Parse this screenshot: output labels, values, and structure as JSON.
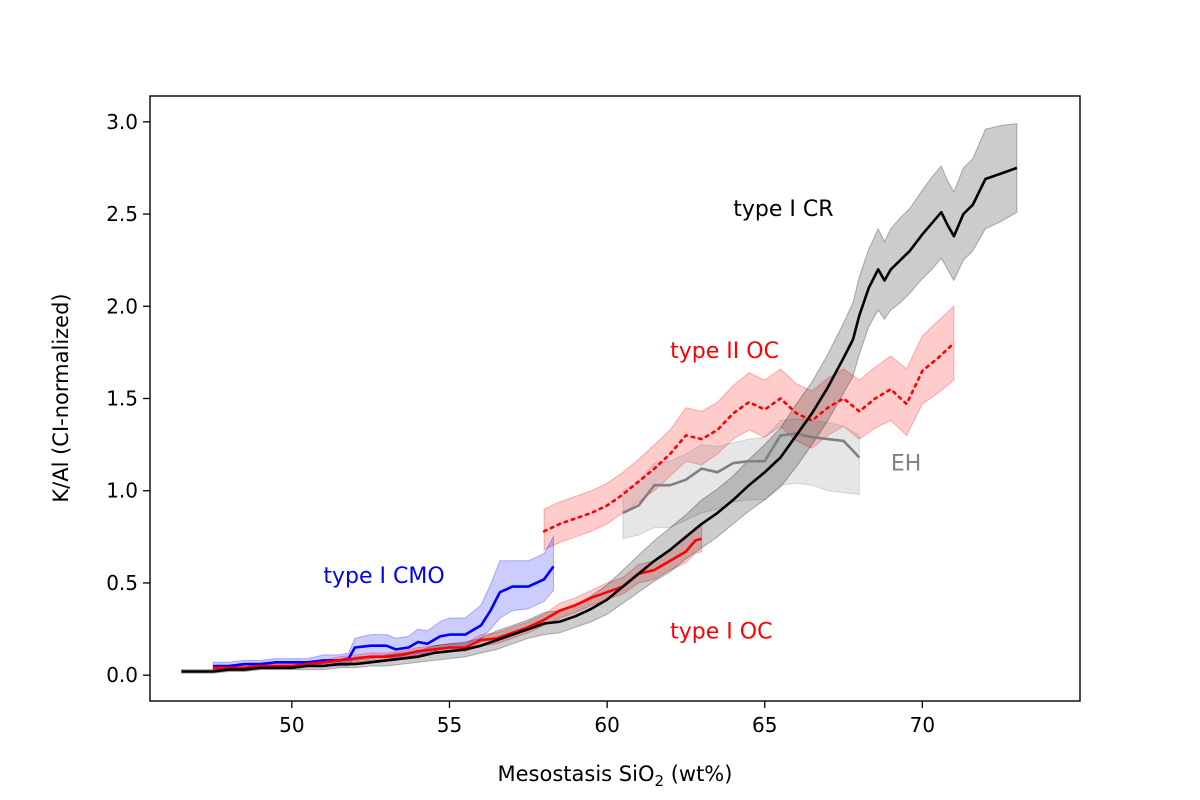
{
  "chart_data": {
    "type": "line",
    "title": "",
    "xlabel": {
      "prefix": "Mesostasis SiO",
      "sub": "2",
      "suffix": " (wt%)"
    },
    "ylabel": "K/Al (CI-normalized)",
    "xlim": [
      45.5,
      75.0
    ],
    "ylim": [
      -0.14,
      3.14
    ],
    "xticks": [
      50,
      55,
      60,
      65,
      70
    ],
    "yticks": [
      0.0,
      0.5,
      1.0,
      1.5,
      2.0,
      2.5,
      3.0
    ],
    "xtick_labels": [
      "50",
      "55",
      "60",
      "65",
      "70"
    ],
    "ytick_labels": [
      "0.0",
      "0.5",
      "1.0",
      "1.5",
      "2.0",
      "2.5",
      "3.0"
    ],
    "grid": false,
    "series": [
      {
        "name": "type II OC",
        "color": "#ff0000",
        "linestyle": "dotted",
        "band_opacity": 0.2,
        "label_pos": [
          62.0,
          1.72
        ],
        "x": [
          58,
          58.5,
          59,
          59.5,
          60,
          60.5,
          61,
          61.5,
          62,
          62.5,
          63,
          63.5,
          64,
          64.5,
          65,
          65.5,
          66,
          66.5,
          67,
          67.5,
          68,
          68.5,
          69,
          69.5,
          70,
          70.5,
          71
        ],
        "y": [
          0.78,
          0.82,
          0.85,
          0.88,
          0.92,
          0.98,
          1.05,
          1.12,
          1.2,
          1.3,
          1.28,
          1.33,
          1.42,
          1.48,
          1.44,
          1.5,
          1.42,
          1.38,
          1.45,
          1.5,
          1.43,
          1.5,
          1.55,
          1.47,
          1.65,
          1.72,
          1.8
        ],
        "lower": [
          0.68,
          0.72,
          0.75,
          0.78,
          0.82,
          0.88,
          0.94,
          1.0,
          1.08,
          1.16,
          1.14,
          1.2,
          1.28,
          1.33,
          1.29,
          1.35,
          1.27,
          1.23,
          1.3,
          1.35,
          1.28,
          1.34,
          1.38,
          1.3,
          1.47,
          1.53,
          1.6
        ],
        "upper": [
          0.9,
          0.94,
          0.97,
          1.0,
          1.04,
          1.1,
          1.17,
          1.25,
          1.33,
          1.45,
          1.43,
          1.48,
          1.57,
          1.64,
          1.6,
          1.66,
          1.58,
          1.54,
          1.61,
          1.66,
          1.6,
          1.67,
          1.73,
          1.66,
          1.84,
          1.92,
          2.0
        ]
      },
      {
        "name": "EH",
        "color": "#808080",
        "linestyle": "solid",
        "band_opacity": 0.2,
        "label_pos": [
          69.0,
          1.11
        ],
        "x": [
          60.5,
          61,
          61.5,
          62,
          62.5,
          63,
          63.5,
          64,
          64.5,
          65,
          65.5,
          66,
          66.5,
          67,
          67.5,
          68
        ],
        "y": [
          0.88,
          0.92,
          1.03,
          1.03,
          1.06,
          1.12,
          1.1,
          1.15,
          1.16,
          1.16,
          1.3,
          1.31,
          1.29,
          1.28,
          1.27,
          1.18
        ],
        "lower": [
          0.74,
          0.76,
          0.8,
          0.8,
          0.84,
          0.88,
          0.9,
          0.94,
          0.95,
          0.95,
          1.03,
          1.04,
          1.03,
          1.0,
          0.99,
          0.98
        ],
        "upper": [
          1.0,
          1.05,
          1.15,
          1.16,
          1.2,
          1.25,
          1.24,
          1.26,
          1.28,
          1.29,
          1.38,
          1.39,
          1.38,
          1.37,
          1.35,
          1.3
        ]
      },
      {
        "name": "type I CMO",
        "color": "#0000ff",
        "linestyle": "solid",
        "band_opacity": 0.2,
        "label_pos": [
          51.0,
          0.5
        ],
        "x": [
          47.5,
          48,
          48.5,
          49,
          49.5,
          50,
          50.5,
          51,
          51.5,
          51.8,
          52,
          52.5,
          53,
          53.3,
          53.7,
          54,
          54.3,
          54.7,
          55,
          55.5,
          56,
          56.3,
          56.6,
          57,
          57.5,
          58,
          58.3
        ],
        "y": [
          0.05,
          0.05,
          0.06,
          0.06,
          0.07,
          0.07,
          0.07,
          0.08,
          0.08,
          0.09,
          0.15,
          0.16,
          0.16,
          0.14,
          0.15,
          0.18,
          0.17,
          0.21,
          0.22,
          0.22,
          0.27,
          0.35,
          0.45,
          0.48,
          0.48,
          0.52,
          0.59
        ],
        "lower": [
          0.03,
          0.03,
          0.04,
          0.04,
          0.05,
          0.05,
          0.05,
          0.05,
          0.05,
          0.05,
          0.1,
          0.1,
          0.1,
          0.09,
          0.09,
          0.12,
          0.11,
          0.14,
          0.15,
          0.15,
          0.2,
          0.25,
          0.31,
          0.35,
          0.36,
          0.4,
          0.46
        ],
        "upper": [
          0.07,
          0.07,
          0.08,
          0.08,
          0.09,
          0.09,
          0.09,
          0.11,
          0.11,
          0.12,
          0.2,
          0.22,
          0.22,
          0.2,
          0.21,
          0.25,
          0.24,
          0.29,
          0.31,
          0.31,
          0.38,
          0.49,
          0.62,
          0.62,
          0.62,
          0.66,
          0.75
        ]
      },
      {
        "name": "type I OC",
        "color": "#ff0000",
        "linestyle": "solid",
        "band_opacity": 0.2,
        "label_pos": [
          62.0,
          0.2
        ],
        "x": [
          47.5,
          48,
          48.5,
          49,
          49.5,
          50,
          50.5,
          51,
          51.5,
          52,
          52.5,
          53,
          53.5,
          54,
          54.5,
          55,
          55.5,
          56,
          56.5,
          57,
          57.5,
          58,
          58.5,
          59,
          59.5,
          60,
          60.5,
          61,
          61.5,
          62,
          62.5,
          62.8,
          63
        ],
        "y": [
          0.04,
          0.04,
          0.04,
          0.05,
          0.05,
          0.05,
          0.06,
          0.07,
          0.08,
          0.09,
          0.1,
          0.1,
          0.11,
          0.13,
          0.14,
          0.15,
          0.15,
          0.19,
          0.2,
          0.23,
          0.26,
          0.3,
          0.35,
          0.38,
          0.42,
          0.45,
          0.48,
          0.55,
          0.57,
          0.62,
          0.67,
          0.73,
          0.74
        ],
        "lower": [
          0.03,
          0.03,
          0.03,
          0.04,
          0.04,
          0.04,
          0.05,
          0.06,
          0.06,
          0.07,
          0.08,
          0.08,
          0.09,
          0.11,
          0.12,
          0.13,
          0.13,
          0.16,
          0.17,
          0.2,
          0.23,
          0.27,
          0.31,
          0.34,
          0.38,
          0.41,
          0.44,
          0.5,
          0.52,
          0.57,
          0.61,
          0.66,
          0.67
        ],
        "upper": [
          0.05,
          0.05,
          0.05,
          0.06,
          0.06,
          0.06,
          0.07,
          0.08,
          0.1,
          0.11,
          0.12,
          0.12,
          0.13,
          0.15,
          0.16,
          0.17,
          0.17,
          0.22,
          0.23,
          0.26,
          0.29,
          0.33,
          0.39,
          0.42,
          0.46,
          0.5,
          0.53,
          0.6,
          0.62,
          0.68,
          0.74,
          0.8,
          0.82
        ]
      },
      {
        "name": "type I CR",
        "color": "#000000",
        "linestyle": "solid",
        "band_opacity": 0.2,
        "label_pos": [
          64.0,
          2.49
        ],
        "x": [
          46.5,
          47,
          47.5,
          48,
          48.5,
          49,
          49.5,
          50,
          50.5,
          51,
          51.5,
          52,
          52.5,
          53,
          53.5,
          54,
          54.5,
          55,
          55.5,
          56,
          56.5,
          57,
          57.5,
          58,
          58.5,
          59,
          59.5,
          60,
          60.5,
          61,
          61.5,
          62,
          62.5,
          63,
          63.5,
          64,
          64.5,
          65,
          65.5,
          66,
          66.5,
          67,
          67.5,
          67.8,
          68,
          68.3,
          68.6,
          68.8,
          69,
          69.3,
          69.6,
          70,
          70.3,
          70.6,
          70.8,
          71,
          71.3,
          71.6,
          72,
          72.5,
          73
        ],
        "y": [
          0.02,
          0.02,
          0.02,
          0.03,
          0.03,
          0.04,
          0.04,
          0.04,
          0.05,
          0.05,
          0.06,
          0.06,
          0.07,
          0.08,
          0.09,
          0.1,
          0.12,
          0.13,
          0.14,
          0.16,
          0.19,
          0.22,
          0.25,
          0.28,
          0.29,
          0.32,
          0.36,
          0.41,
          0.48,
          0.55,
          0.62,
          0.68,
          0.75,
          0.82,
          0.88,
          0.95,
          1.03,
          1.1,
          1.18,
          1.3,
          1.42,
          1.56,
          1.72,
          1.82,
          1.95,
          2.1,
          2.2,
          2.14,
          2.2,
          2.25,
          2.3,
          2.39,
          2.45,
          2.51,
          2.44,
          2.38,
          2.5,
          2.55,
          2.69,
          2.72,
          2.75
        ],
        "lower": [
          0.01,
          0.01,
          0.01,
          0.02,
          0.02,
          0.03,
          0.03,
          0.03,
          0.03,
          0.03,
          0.04,
          0.04,
          0.05,
          0.05,
          0.06,
          0.07,
          0.08,
          0.09,
          0.1,
          0.12,
          0.14,
          0.17,
          0.2,
          0.22,
          0.23,
          0.26,
          0.29,
          0.33,
          0.39,
          0.45,
          0.51,
          0.56,
          0.63,
          0.69,
          0.75,
          0.82,
          0.89,
          0.95,
          1.02,
          1.13,
          1.25,
          1.38,
          1.53,
          1.62,
          1.74,
          1.89,
          1.98,
          1.93,
          1.98,
          2.02,
          2.07,
          2.15,
          2.2,
          2.26,
          2.2,
          2.14,
          2.25,
          2.3,
          2.42,
          2.46,
          2.51
        ],
        "upper": [
          0.03,
          0.03,
          0.03,
          0.04,
          0.04,
          0.05,
          0.05,
          0.05,
          0.07,
          0.07,
          0.08,
          0.08,
          0.09,
          0.11,
          0.12,
          0.13,
          0.16,
          0.17,
          0.18,
          0.2,
          0.24,
          0.27,
          0.3,
          0.34,
          0.35,
          0.38,
          0.43,
          0.49,
          0.57,
          0.65,
          0.73,
          0.8,
          0.87,
          0.95,
          1.01,
          1.08,
          1.17,
          1.25,
          1.34,
          1.47,
          1.59,
          1.74,
          1.91,
          2.02,
          2.16,
          2.31,
          2.42,
          2.35,
          2.42,
          2.48,
          2.53,
          2.63,
          2.7,
          2.76,
          2.68,
          2.62,
          2.75,
          2.8,
          2.96,
          2.98,
          2.99
        ]
      }
    ]
  }
}
